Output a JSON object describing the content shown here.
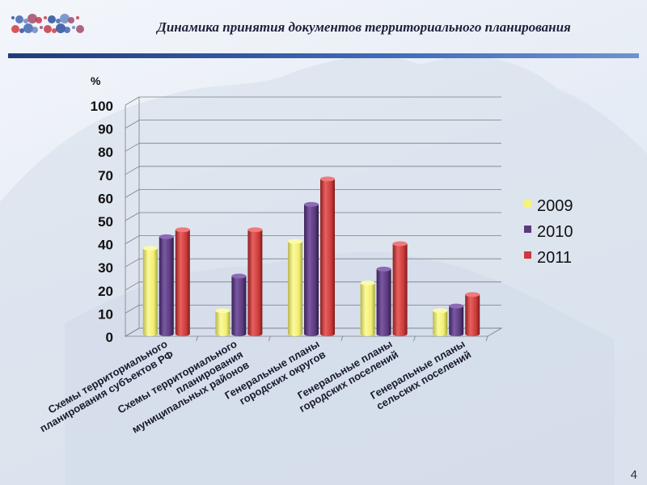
{
  "header": {
    "title": "Динамика принятия документов территориального  планирования"
  },
  "page_number": "4",
  "colors": {
    "2009": "#f5f37a",
    "2010": "#5b3a7e",
    "2011": "#cc3a3a",
    "rule": "#2e4f98"
  },
  "chart_data": {
    "type": "bar",
    "title": "Динамика принятия документов территориального  планирования",
    "ylabel": "%",
    "ylim": [
      0,
      100
    ],
    "yticks": [
      0,
      10,
      20,
      30,
      40,
      50,
      60,
      70,
      80,
      90,
      100
    ],
    "categories": [
      "Схемы территориального планирования субъектов РФ",
      "Схемы территориального планирования муниципальных районов",
      "Генеральные планы городских округов",
      "Генеральные планы городских поселений",
      "Генеральные планы сельских поселений"
    ],
    "category_lines": [
      [
        "Схемы территориального",
        "планирования субъектов РФ"
      ],
      [
        "Схемы территориального",
        "планирования",
        "муниципальных районов"
      ],
      [
        "Генеральные планы",
        "городских округов"
      ],
      [
        "Генеральные планы",
        "городских поселений"
      ],
      [
        "Генеральные планы",
        "сельских поселений"
      ]
    ],
    "series": [
      {
        "name": "2009",
        "values": [
          37,
          10,
          40,
          22,
          10
        ]
      },
      {
        "name": "2010",
        "values": [
          42,
          25,
          56,
          28,
          12
        ]
      },
      {
        "name": "2011",
        "values": [
          45,
          45,
          67,
          39,
          17
        ]
      }
    ],
    "grid": true,
    "legend": "right"
  }
}
